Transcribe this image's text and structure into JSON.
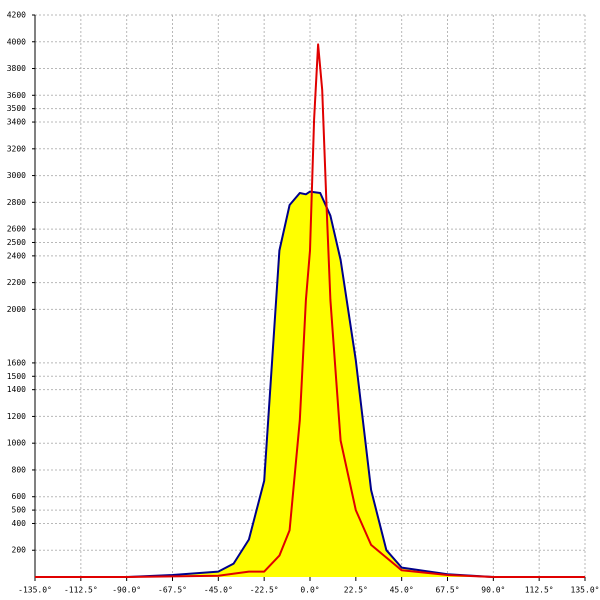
{
  "chart_data": {
    "type": "line",
    "xlim": [
      -135,
      135
    ],
    "ylim": [
      0,
      4200
    ],
    "xticks": [
      {
        "value": -135,
        "label": "-135.0°"
      },
      {
        "value": -112.5,
        "label": "-112.5°"
      },
      {
        "value": -90,
        "label": "-90.0°"
      },
      {
        "value": -67.5,
        "label": "-67.5°"
      },
      {
        "value": -45,
        "label": "-45.0°"
      },
      {
        "value": -22.5,
        "label": "-22.5°"
      },
      {
        "value": 0,
        "label": "0.0°"
      },
      {
        "value": 22.5,
        "label": "22.5°"
      },
      {
        "value": 45,
        "label": "45.0°"
      },
      {
        "value": 67.5,
        "label": "67.5°"
      },
      {
        "value": 90,
        "label": "90.0°"
      },
      {
        "value": 112.5,
        "label": "112.5°"
      },
      {
        "value": 135,
        "label": "135.0°"
      }
    ],
    "yticks": [
      200,
      400,
      500,
      600,
      800,
      1000,
      1200,
      1400,
      1500,
      1600,
      2000,
      2200,
      2400,
      2500,
      2600,
      2800,
      3000,
      3200,
      3400,
      3500,
      3600,
      3800,
      4000,
      4200
    ],
    "grid": true,
    "series": [
      {
        "color": "#00008b",
        "fill": "#ffff00",
        "x": [
          -90,
          -67.5,
          -45,
          -37.5,
          -30,
          -22.5,
          -15,
          -10,
          -5,
          -2,
          0,
          5,
          10,
          15,
          22.5,
          30,
          37.5,
          45,
          67.5,
          90
        ],
        "values": [
          0,
          15,
          40,
          100,
          280,
          720,
          2440,
          2780,
          2870,
          2860,
          2880,
          2870,
          2700,
          2370,
          1620,
          650,
          200,
          70,
          20,
          0
        ]
      },
      {
        "color": "#e00000",
        "x": [
          -135,
          -90,
          -45,
          -30,
          -22.5,
          -15,
          -10,
          -5,
          -2,
          0,
          2,
          4,
          6,
          8,
          10,
          15,
          22.5,
          30,
          45,
          67.5,
          90,
          135
        ],
        "values": [
          0,
          0,
          10,
          40,
          40,
          160,
          350,
          1170,
          2070,
          2440,
          3420,
          3980,
          3640,
          2820,
          2070,
          1020,
          500,
          240,
          50,
          15,
          0,
          0
        ]
      }
    ]
  }
}
